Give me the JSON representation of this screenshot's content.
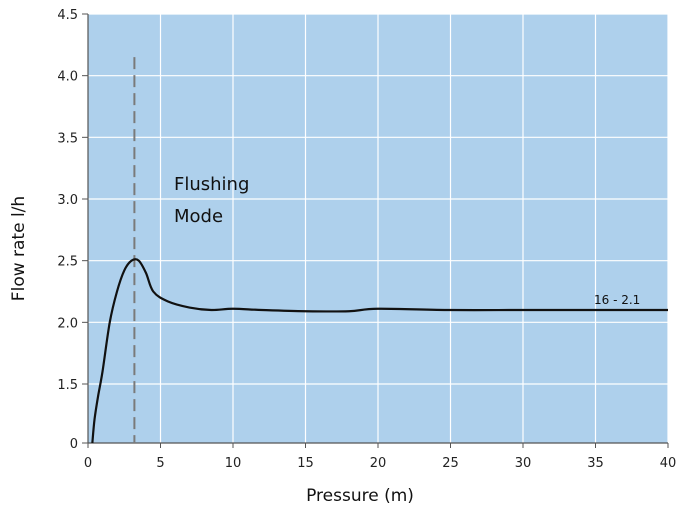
{
  "chart_data": {
    "type": "line",
    "title": "",
    "xlabel": "Pressure (m)",
    "ylabel": "Flow rate l/h",
    "xlim": [
      0,
      40
    ],
    "ylim": [
      0,
      4.5
    ],
    "x_ticks": [
      0,
      5,
      10,
      15,
      20,
      25,
      30,
      35,
      40
    ],
    "x_tick_labels": [
      "0",
      "5",
      "10",
      "15",
      "20",
      "25",
      "30",
      "35",
      "40"
    ],
    "y_ticks": [
      0,
      1.5,
      2.0,
      2.5,
      3.0,
      3.5,
      4.0,
      4.5
    ],
    "y_tick_labels": [
      "0",
      "1.5",
      "2.0",
      "2.5",
      "3.0",
      "3.5",
      "4.0",
      "4.5"
    ],
    "grid": true,
    "plot_background": "#aed0ec",
    "grid_color": "#ffffff",
    "line_color": "#111111",
    "marker_line": {
      "x": 3.2,
      "y_top": 4.15,
      "style": "dashed",
      "color": "#7a7a7a"
    },
    "annotation": {
      "lines": [
        "Flushing",
        "Mode"
      ]
    },
    "series_label": "16 - 2.1",
    "series": [
      {
        "name": "16 - 2.1",
        "points": [
          [
            0.3,
            0.0
          ],
          [
            0.45,
            0.6
          ],
          [
            0.7,
            1.2
          ],
          [
            1.0,
            1.6
          ],
          [
            1.5,
            2.0
          ],
          [
            2.0,
            2.25
          ],
          [
            2.5,
            2.42
          ],
          [
            3.0,
            2.5
          ],
          [
            3.5,
            2.5
          ],
          [
            4.0,
            2.4
          ],
          [
            4.5,
            2.25
          ],
          [
            5.5,
            2.17
          ],
          [
            7.0,
            2.12
          ],
          [
            8.5,
            2.1
          ],
          [
            10.0,
            2.11
          ],
          [
            12.0,
            2.1
          ],
          [
            15.0,
            2.09
          ],
          [
            18.0,
            2.09
          ],
          [
            20.0,
            2.11
          ],
          [
            25.0,
            2.1
          ],
          [
            30.0,
            2.1
          ],
          [
            35.0,
            2.1
          ],
          [
            40.0,
            2.1
          ]
        ]
      }
    ]
  }
}
